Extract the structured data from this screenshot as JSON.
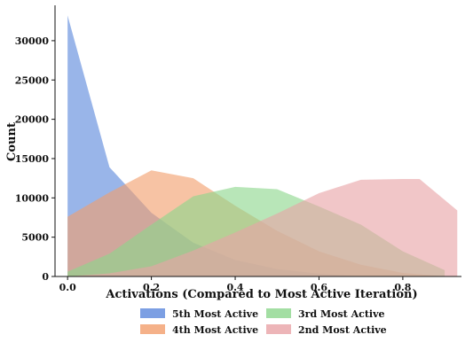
{
  "chart_data": {
    "type": "area",
    "xlabel": "Activations (Compared to Most Active Iteration)",
    "ylabel": "Count",
    "xlim": [
      -0.03,
      0.94
    ],
    "ylim": [
      0,
      34500
    ],
    "x_ticks": [
      0.0,
      0.2,
      0.4,
      0.6,
      0.8
    ],
    "x_tick_labels": [
      "0.0",
      "0.2",
      "0.4",
      "0.6",
      "0.8"
    ],
    "y_ticks": [
      0,
      5000,
      10000,
      15000,
      20000,
      25000,
      30000
    ],
    "y_tick_labels": [
      "0",
      "5000",
      "10000",
      "15000",
      "20000",
      "25000",
      "30000"
    ],
    "grid": false,
    "legend_position": "bottom",
    "series": [
      {
        "name": "5th Most Active",
        "color": "#5b87dc",
        "x": [
          0.0,
          0.1,
          0.2,
          0.3,
          0.4,
          0.5,
          0.6,
          0.7
        ],
        "y": [
          33200,
          13900,
          8100,
          4300,
          2100,
          950,
          350,
          0
        ]
      },
      {
        "name": "4th Most Active",
        "color": "#f29e6c",
        "x": [
          0.0,
          0.1,
          0.2,
          0.3,
          0.4,
          0.5,
          0.6,
          0.7,
          0.8,
          0.9
        ],
        "y": [
          7600,
          10700,
          13500,
          12500,
          9000,
          5800,
          3200,
          1500,
          450,
          0
        ]
      },
      {
        "name": "3rd Most Active",
        "color": "#8cd68c",
        "x": [
          0.0,
          0.1,
          0.2,
          0.3,
          0.4,
          0.5,
          0.6,
          0.7,
          0.8,
          0.9
        ],
        "y": [
          600,
          2900,
          6600,
          10200,
          11400,
          11100,
          8900,
          6600,
          3200,
          800
        ]
      },
      {
        "name": "2nd Most Active",
        "color": "#e9a3a6",
        "x": [
          0.0,
          0.1,
          0.2,
          0.3,
          0.4,
          0.5,
          0.6,
          0.7,
          0.8,
          0.84,
          0.93
        ],
        "y": [
          0,
          400,
          1300,
          3300,
          5600,
          8000,
          10600,
          12300,
          12400,
          12400,
          8400
        ]
      }
    ]
  }
}
